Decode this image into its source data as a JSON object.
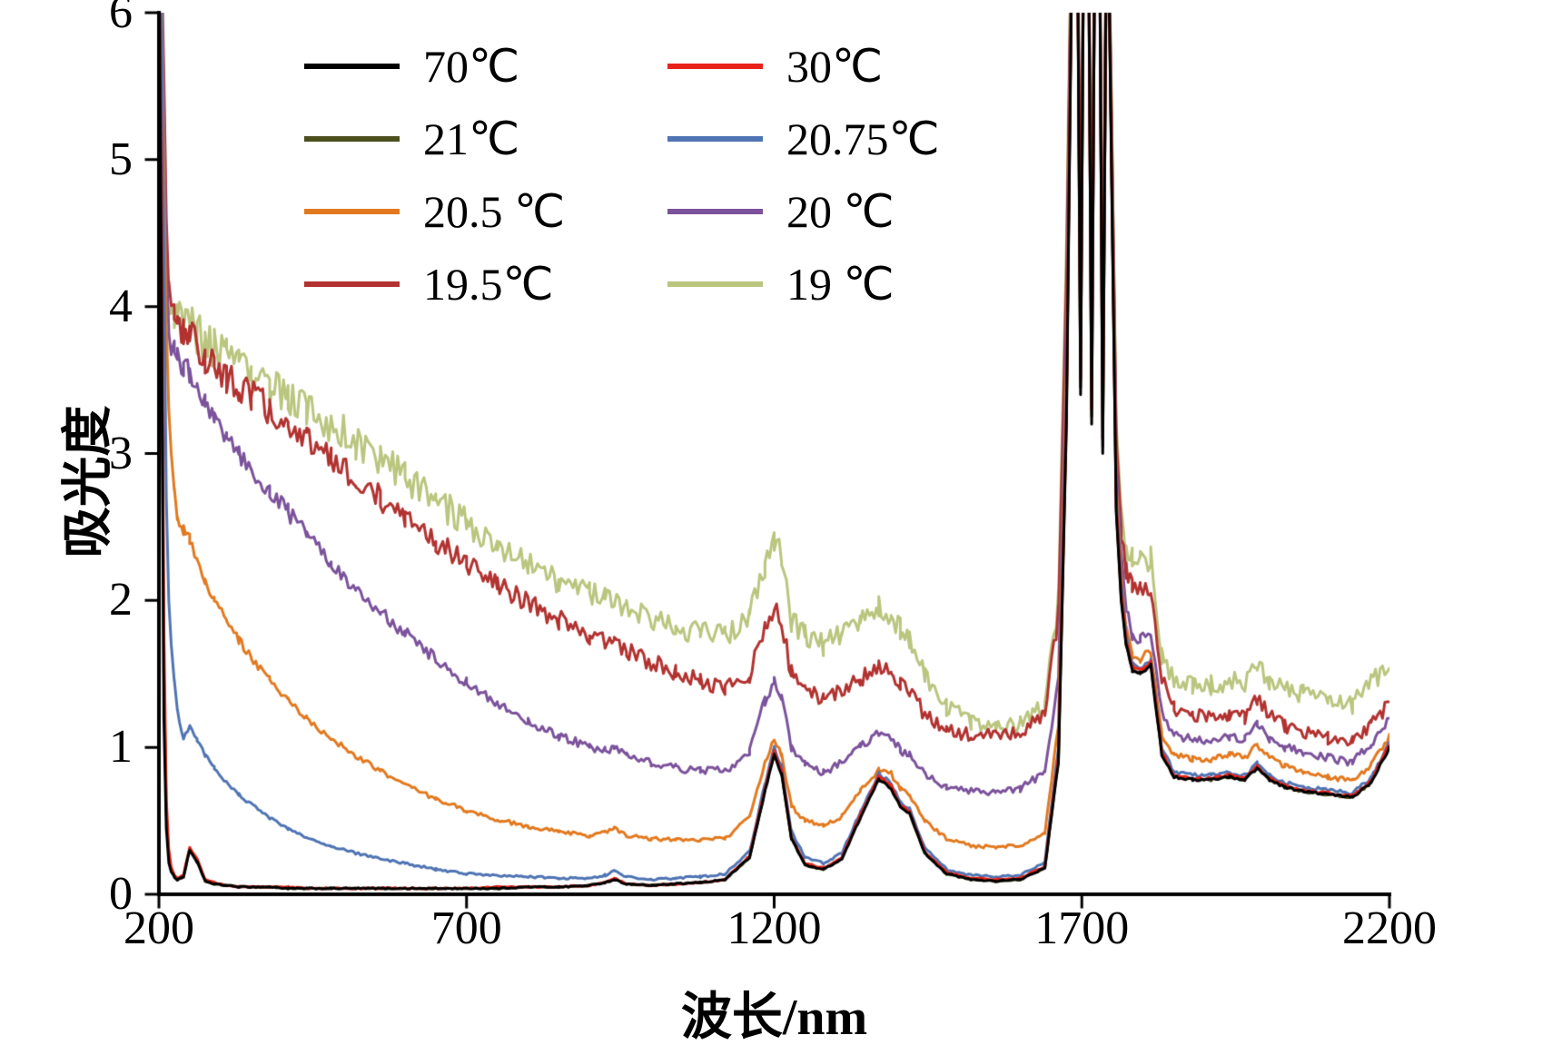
{
  "figure": {
    "background": "#ffffff",
    "axis_color": "#000000"
  },
  "chart_data": {
    "type": "line",
    "title": "",
    "xlabel": "波长/nm",
    "ylabel": "吸光度",
    "xlim": [
      200,
      2200
    ],
    "ylim": [
      0,
      6
    ],
    "xticks": [
      200,
      700,
      1200,
      1700,
      2200
    ],
    "yticks": [
      0,
      1,
      2,
      3,
      4,
      5,
      6
    ],
    "grid": false,
    "legend_position": "top-left-inside",
    "x": [
      200,
      204,
      208,
      212,
      216,
      220,
      225,
      230,
      240,
      250,
      262,
      275,
      290,
      310,
      330,
      350,
      380,
      410,
      440,
      480,
      520,
      560,
      600,
      650,
      700,
      750,
      800,
      850,
      900,
      925,
      940,
      960,
      1000,
      1040,
      1080,
      1120,
      1160,
      1185,
      1200,
      1212,
      1228,
      1250,
      1280,
      1310,
      1340,
      1370,
      1390,
      1405,
      1420,
      1445,
      1480,
      1520,
      1560,
      1600,
      1640,
      1662,
      1675,
      1685,
      1692,
      1698,
      1704,
      1710,
      1716,
      1722,
      1728,
      1734,
      1741,
      1748,
      1756,
      1764,
      1772,
      1782,
      1795,
      1812,
      1830,
      1850,
      1880,
      1910,
      1940,
      1965,
      1985,
      2005,
      2030,
      2060,
      2100,
      2140,
      2170,
      2200
    ],
    "series": [
      {
        "label": "70℃",
        "color": "#000000",
        "noise": 0.004,
        "y": [
          6.5,
          4.2,
          1.2,
          0.45,
          0.22,
          0.15,
          0.12,
          0.1,
          0.12,
          0.3,
          0.22,
          0.09,
          0.07,
          0.06,
          0.05,
          0.05,
          0.05,
          0.04,
          0.04,
          0.04,
          0.04,
          0.04,
          0.04,
          0.04,
          0.04,
          0.04,
          0.05,
          0.05,
          0.06,
          0.08,
          0.1,
          0.07,
          0.06,
          0.07,
          0.08,
          0.1,
          0.25,
          0.7,
          0.95,
          0.82,
          0.38,
          0.2,
          0.17,
          0.24,
          0.52,
          0.78,
          0.72,
          0.6,
          0.55,
          0.28,
          0.14,
          0.1,
          0.09,
          0.1,
          0.18,
          0.9,
          3.2,
          6.8,
          7.2,
          3.4,
          7.2,
          7.2,
          3.2,
          7.2,
          7.2,
          3.0,
          7.2,
          5.0,
          2.6,
          2.0,
          1.7,
          1.52,
          1.5,
          1.56,
          0.95,
          0.8,
          0.78,
          0.78,
          0.8,
          0.78,
          0.86,
          0.78,
          0.73,
          0.7,
          0.68,
          0.66,
          0.76,
          1.0
        ]
      },
      {
        "label": "30℃",
        "color": "#e8231a",
        "noise": 0.004,
        "y": [
          6.5,
          4.8,
          1.8,
          0.65,
          0.3,
          0.18,
          0.13,
          0.11,
          0.13,
          0.32,
          0.24,
          0.1,
          0.08,
          0.06,
          0.05,
          0.05,
          0.05,
          0.05,
          0.04,
          0.04,
          0.04,
          0.04,
          0.04,
          0.04,
          0.04,
          0.05,
          0.05,
          0.05,
          0.06,
          0.08,
          0.11,
          0.07,
          0.06,
          0.07,
          0.08,
          0.1,
          0.26,
          0.72,
          0.97,
          0.84,
          0.39,
          0.21,
          0.18,
          0.25,
          0.54,
          0.8,
          0.74,
          0.61,
          0.56,
          0.29,
          0.15,
          0.11,
          0.1,
          0.11,
          0.19,
          0.95,
          3.3,
          6.9,
          7.2,
          3.5,
          7.2,
          7.2,
          3.3,
          7.2,
          7.2,
          3.1,
          7.2,
          5.1,
          2.65,
          2.05,
          1.73,
          1.55,
          1.52,
          1.58,
          0.97,
          0.81,
          0.79,
          0.79,
          0.81,
          0.79,
          0.87,
          0.79,
          0.74,
          0.71,
          0.69,
          0.67,
          0.77,
          1.02
        ]
      },
      {
        "label": "21℃",
        "color": "#4b4f1d",
        "noise": 0.004,
        "y": [
          6.5,
          4.5,
          1.5,
          0.55,
          0.26,
          0.16,
          0.12,
          0.1,
          0.12,
          0.31,
          0.23,
          0.09,
          0.07,
          0.06,
          0.05,
          0.05,
          0.05,
          0.04,
          0.04,
          0.04,
          0.04,
          0.04,
          0.04,
          0.04,
          0.04,
          0.04,
          0.05,
          0.05,
          0.06,
          0.08,
          0.1,
          0.07,
          0.06,
          0.07,
          0.08,
          0.1,
          0.25,
          0.71,
          0.96,
          0.83,
          0.38,
          0.2,
          0.17,
          0.24,
          0.53,
          0.79,
          0.73,
          0.6,
          0.55,
          0.28,
          0.14,
          0.1,
          0.09,
          0.1,
          0.18,
          0.92,
          3.25,
          6.85,
          7.2,
          3.45,
          7.2,
          7.2,
          3.25,
          7.2,
          7.2,
          3.05,
          7.2,
          5.05,
          2.62,
          2.02,
          1.71,
          1.53,
          1.51,
          1.57,
          0.96,
          0.8,
          0.78,
          0.78,
          0.8,
          0.78,
          0.86,
          0.78,
          0.73,
          0.7,
          0.68,
          0.66,
          0.76,
          1.01
        ]
      },
      {
        "label": "20.75℃",
        "color": "#4f74b3",
        "noise": 0.006,
        "y": [
          6.5,
          6.0,
          4.4,
          2.7,
          2.0,
          1.7,
          1.45,
          1.25,
          1.05,
          1.15,
          1.05,
          0.95,
          0.86,
          0.76,
          0.68,
          0.61,
          0.52,
          0.45,
          0.39,
          0.33,
          0.28,
          0.24,
          0.21,
          0.17,
          0.14,
          0.13,
          0.12,
          0.11,
          0.11,
          0.13,
          0.16,
          0.12,
          0.1,
          0.11,
          0.12,
          0.14,
          0.29,
          0.75,
          1.0,
          0.87,
          0.43,
          0.25,
          0.21,
          0.28,
          0.56,
          0.82,
          0.76,
          0.63,
          0.58,
          0.32,
          0.17,
          0.13,
          0.12,
          0.13,
          0.22,
          1.0,
          3.4,
          6.9,
          7.2,
          3.5,
          7.2,
          7.2,
          3.3,
          7.2,
          7.2,
          3.1,
          7.2,
          5.1,
          2.7,
          2.1,
          1.75,
          1.56,
          1.53,
          1.59,
          1.0,
          0.83,
          0.81,
          0.81,
          0.83,
          0.81,
          0.89,
          0.81,
          0.76,
          0.73,
          0.71,
          0.69,
          0.79,
          1.04
        ]
      },
      {
        "label": "20.5 ℃",
        "color": "#e2791f",
        "noise": 0.008,
        "y": [
          6.5,
          6.2,
          5.0,
          3.9,
          3.3,
          3.0,
          2.75,
          2.55,
          2.48,
          2.42,
          2.28,
          2.12,
          2.0,
          1.86,
          1.73,
          1.61,
          1.46,
          1.32,
          1.2,
          1.06,
          0.94,
          0.84,
          0.75,
          0.65,
          0.57,
          0.51,
          0.46,
          0.43,
          0.4,
          0.42,
          0.45,
          0.4,
          0.38,
          0.37,
          0.37,
          0.38,
          0.52,
          0.9,
          1.05,
          0.95,
          0.6,
          0.5,
          0.47,
          0.53,
          0.7,
          0.85,
          0.82,
          0.72,
          0.67,
          0.5,
          0.38,
          0.33,
          0.32,
          0.33,
          0.42,
          1.15,
          3.6,
          7.0,
          7.2,
          3.7,
          7.2,
          7.2,
          3.5,
          7.2,
          7.2,
          3.3,
          7.2,
          5.2,
          2.8,
          2.15,
          1.8,
          1.62,
          1.6,
          1.66,
          1.08,
          0.95,
          0.92,
          0.92,
          0.95,
          0.93,
          1.02,
          0.93,
          0.87,
          0.84,
          0.8,
          0.77,
          0.88,
          1.07
        ]
      },
      {
        "label": "20 ℃",
        "color": "#7b529b",
        "noise": 0.012,
        "y": [
          6.5,
          6.3,
          5.4,
          4.3,
          3.85,
          3.75,
          3.7,
          3.65,
          3.6,
          3.55,
          3.45,
          3.35,
          3.25,
          3.1,
          3.0,
          2.9,
          2.75,
          2.6,
          2.45,
          2.25,
          2.08,
          1.92,
          1.78,
          1.6,
          1.44,
          1.3,
          1.18,
          1.08,
          1.0,
          0.98,
          0.99,
          0.94,
          0.9,
          0.86,
          0.84,
          0.84,
          0.97,
          1.32,
          1.45,
          1.35,
          1.0,
          0.88,
          0.83,
          0.9,
          1.0,
          1.1,
          1.08,
          0.98,
          0.95,
          0.82,
          0.73,
          0.7,
          0.7,
          0.72,
          0.83,
          1.45,
          3.9,
          7.1,
          7.2,
          3.9,
          7.2,
          7.2,
          3.7,
          7.2,
          7.2,
          3.5,
          7.2,
          5.3,
          2.95,
          2.3,
          1.95,
          1.76,
          1.73,
          1.78,
          1.25,
          1.08,
          1.05,
          1.05,
          1.07,
          1.05,
          1.15,
          1.06,
          1.0,
          0.97,
          0.93,
          0.9,
          1.02,
          1.2
        ]
      },
      {
        "label": "19.5℃",
        "color": "#b23230",
        "noise": 0.018,
        "y": [
          6.5,
          6.4,
          5.6,
          4.6,
          4.1,
          3.95,
          3.9,
          3.88,
          3.85,
          3.8,
          3.72,
          3.66,
          3.6,
          3.52,
          3.46,
          3.4,
          3.3,
          3.2,
          3.1,
          2.97,
          2.83,
          2.7,
          2.57,
          2.41,
          2.26,
          2.12,
          1.98,
          1.87,
          1.76,
          1.72,
          1.72,
          1.66,
          1.58,
          1.51,
          1.45,
          1.41,
          1.5,
          1.82,
          1.95,
          1.85,
          1.5,
          1.4,
          1.33,
          1.38,
          1.46,
          1.56,
          1.53,
          1.43,
          1.39,
          1.22,
          1.12,
          1.08,
          1.08,
          1.1,
          1.24,
          1.9,
          4.2,
          7.1,
          7.2,
          4.0,
          7.2,
          7.2,
          3.8,
          7.2,
          7.2,
          3.6,
          7.2,
          5.4,
          3.1,
          2.5,
          2.2,
          2.08,
          2.05,
          2.1,
          1.48,
          1.26,
          1.22,
          1.21,
          1.23,
          1.21,
          1.33,
          1.22,
          1.14,
          1.11,
          1.06,
          1.03,
          1.16,
          1.3
        ]
      },
      {
        "label": "19 ℃",
        "color": "#bac57e",
        "noise": 0.022,
        "y": [
          4.6,
          4.3,
          4.15,
          4.08,
          4.03,
          4.0,
          3.98,
          3.96,
          3.92,
          3.88,
          3.82,
          3.77,
          3.72,
          3.66,
          3.6,
          3.54,
          3.46,
          3.38,
          3.3,
          3.2,
          3.08,
          2.96,
          2.84,
          2.68,
          2.53,
          2.38,
          2.25,
          2.14,
          2.04,
          2.0,
          2.0,
          1.94,
          1.88,
          1.82,
          1.78,
          1.76,
          1.88,
          2.25,
          2.4,
          2.28,
          1.87,
          1.76,
          1.7,
          1.76,
          1.85,
          1.95,
          1.92,
          1.8,
          1.74,
          1.5,
          1.28,
          1.17,
          1.14,
          1.16,
          1.3,
          2.0,
          4.4,
          7.2,
          7.2,
          4.2,
          7.2,
          7.2,
          4.0,
          7.2,
          7.2,
          3.8,
          7.2,
          5.5,
          3.2,
          2.6,
          2.3,
          2.27,
          2.25,
          2.3,
          1.62,
          1.46,
          1.43,
          1.42,
          1.45,
          1.43,
          1.56,
          1.46,
          1.39,
          1.36,
          1.31,
          1.29,
          1.43,
          1.56
        ]
      }
    ]
  }
}
